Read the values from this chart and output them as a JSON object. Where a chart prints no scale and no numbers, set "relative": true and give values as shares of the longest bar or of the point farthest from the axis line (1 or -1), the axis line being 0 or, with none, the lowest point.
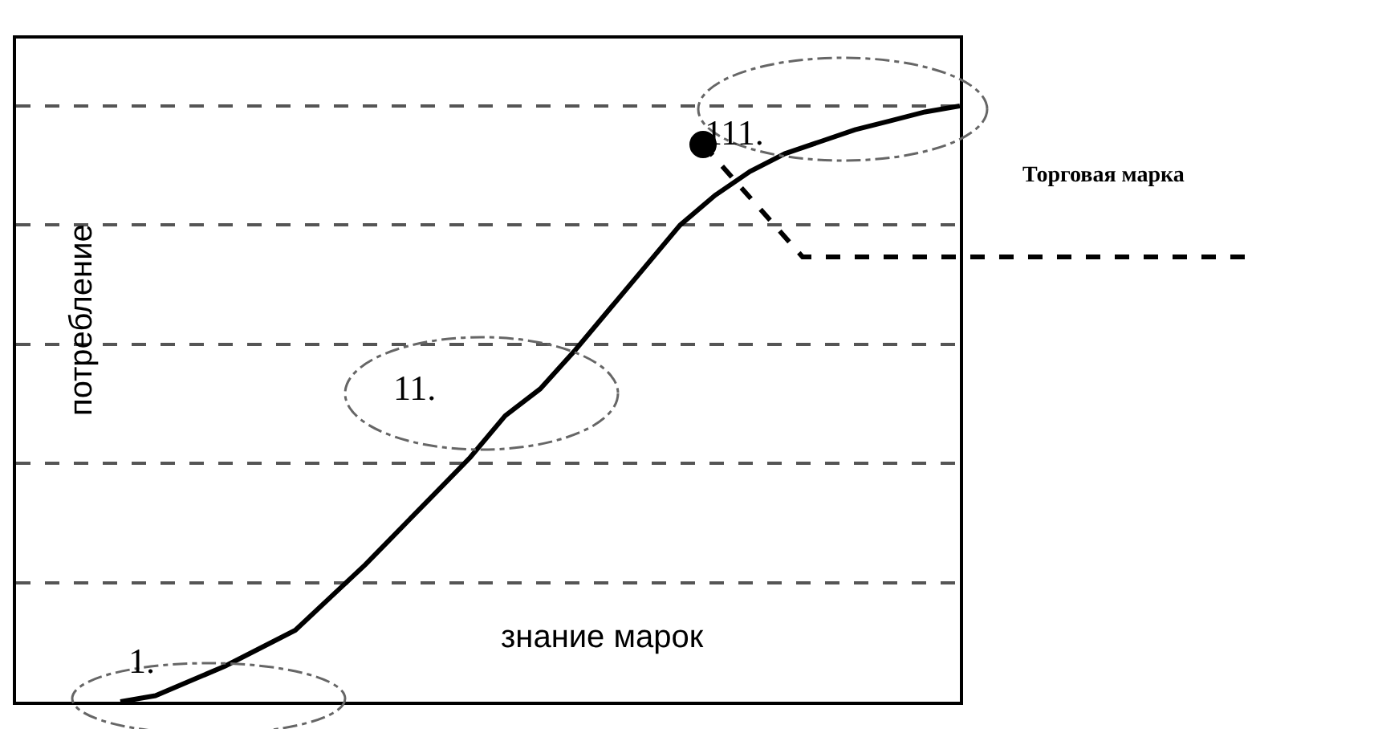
{
  "chart_data": {
    "type": "line",
    "relative": true,
    "xlabel": "знание марок",
    "ylabel": "потребление",
    "grid": "y",
    "categories": [
      null,
      null,
      null,
      null,
      null,
      null,
      null,
      null,
      null,
      null,
      null,
      null,
      null,
      null,
      null,
      null,
      null,
      null,
      null,
      null,
      null,
      null,
      null,
      null,
      null
    ],
    "series": [
      {
        "color": "#000000",
        "line_style": "solid",
        "values": [
          0,
          0.01,
          0.035,
          0.06,
          0.09,
          0.12,
          0.175,
          0.23,
          0.29,
          0.35,
          0.41,
          0.48,
          0.525,
          0.59,
          0.66,
          0.73,
          0.8,
          0.85,
          0.89,
          0.92,
          0.94,
          0.96,
          0.975,
          0.99,
          1.0
        ]
      }
    ],
    "annotations": [
      "1.",
      "11.",
      "111.",
      "Торговая марка"
    ]
  }
}
